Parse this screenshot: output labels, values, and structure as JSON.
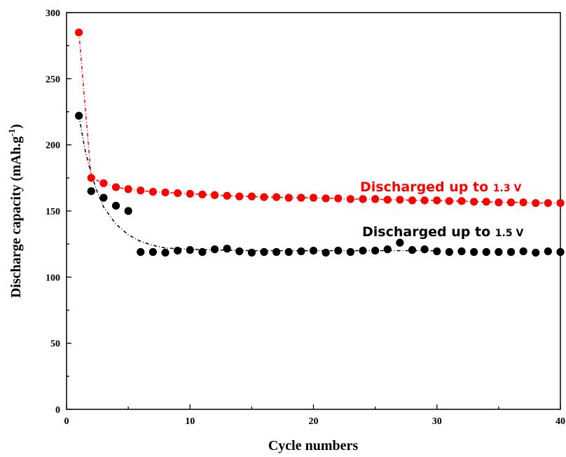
{
  "chart_data": {
    "type": "scatter",
    "xlabel": "Cycle numbers",
    "ylabel": "Discharge capacity (mAh.g",
    "ylabel_sup": "-1",
    "ylabel_end": ")",
    "xlim": [
      0,
      40
    ],
    "ylim": [
      0,
      300
    ],
    "xticks": [
      0,
      10,
      20,
      30,
      40
    ],
    "yticks": [
      0,
      50,
      100,
      150,
      200,
      250,
      300
    ],
    "grid": false,
    "series": [
      {
        "name_main": "Discharged up to ",
        "name_volt": "1.3 V",
        "color": "#ff0000",
        "x": [
          1,
          2,
          3,
          4,
          5,
          6,
          7,
          8,
          9,
          10,
          11,
          12,
          13,
          14,
          15,
          16,
          17,
          18,
          19,
          20,
          21,
          22,
          23,
          24,
          25,
          26,
          27,
          28,
          29,
          30,
          31,
          32,
          33,
          34,
          35,
          36,
          37,
          38,
          39,
          40
        ],
        "y": [
          285,
          175,
          171,
          168,
          166.5,
          165.5,
          164.5,
          164,
          163.5,
          163,
          162.5,
          162,
          161.5,
          161,
          161,
          160.5,
          160.5,
          160,
          160,
          160,
          159.5,
          159.5,
          159,
          159,
          159,
          158.5,
          158.5,
          158,
          158,
          158,
          157.5,
          157.5,
          157,
          157,
          156.5,
          156.5,
          156.5,
          156,
          156,
          156
        ]
      },
      {
        "name_main": "Discharged up to ",
        "name_volt": "1.5 V",
        "color": "#000000",
        "x": [
          1,
          2,
          3,
          4,
          5,
          6,
          7,
          8,
          9,
          10,
          11,
          12,
          13,
          14,
          15,
          16,
          17,
          18,
          19,
          20,
          21,
          22,
          23,
          24,
          25,
          26,
          27,
          28,
          29,
          30,
          31,
          32,
          33,
          34,
          35,
          36,
          37,
          38,
          39,
          40
        ],
        "y": [
          222,
          165,
          160,
          154,
          150,
          119,
          119,
          118.5,
          120,
          120.5,
          119,
          121,
          121.5,
          119.5,
          118.5,
          119,
          119,
          119,
          119.5,
          120,
          118.5,
          120,
          119,
          120,
          120,
          121,
          126,
          120.5,
          121,
          119.5,
          119,
          119.5,
          119,
          119,
          119,
          119,
          119.5,
          118.5,
          119.5,
          119
        ],
        "fit_x": [
          1,
          1.5,
          2,
          2.5,
          3,
          4,
          5,
          6,
          7,
          8,
          9,
          10,
          12,
          15,
          20,
          25,
          30
        ],
        "fit_y": [
          222,
          196,
          178,
          164,
          153,
          140,
          132,
          127,
          124,
          122,
          121.5,
          121,
          120.5,
          120,
          120,
          120,
          120
        ]
      }
    ]
  }
}
